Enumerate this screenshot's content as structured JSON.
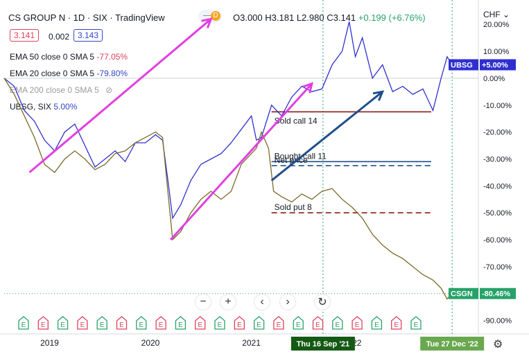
{
  "header": {
    "title": "CS GROUP N · 1D · SIX · TradingView",
    "ohlc_o": "O3.000",
    "ohlc_h": "H3.181",
    "ohlc_l": "L2.980",
    "ohlc_c": "C3.141",
    "change": "+0.199 (+6.76%)",
    "currency": "CHF",
    "bid": "3.141",
    "spread": "0.002",
    "ask": "3.143"
  },
  "indicators": [
    {
      "label": "EMA 50 close 0 SMA 5",
      "value": "-77.05%",
      "color": "#e0405a"
    },
    {
      "label": "EMA 20 close 0 SMA 5",
      "value": "-79.80%",
      "color": "#3347c9"
    },
    {
      "label": "EMA 200 close 0 SMA 5",
      "value": ""
    },
    {
      "label": "UBSG, SIX",
      "value": "5.00%",
      "color": "#3347c9"
    }
  ],
  "chart_data": {
    "type": "line",
    "y_axis_unit": "%",
    "ylim": [
      -95,
      27
    ],
    "y_ticks": [
      "20.00%",
      "10.00%",
      "0.00%",
      "-10.00%",
      "-20.00%",
      "-30.00%",
      "-40.00%",
      "-50.00%",
      "-60.00%",
      "-70.00%",
      "-80.00%",
      "-90.00%"
    ],
    "y_tick_values": [
      20,
      10,
      0,
      -10,
      -20,
      -30,
      -40,
      -50,
      -60,
      -70,
      -80,
      -90
    ],
    "x_ticks": [
      "2019",
      "2020",
      "2021",
      "2022"
    ],
    "x_tick_values": [
      2019.0,
      2020.0,
      2021.0,
      2022.0
    ],
    "xlim": [
      2018.55,
      2023.25
    ],
    "date_markers": [
      {
        "label": "Thu 16 Sep '21",
        "x": 2021.71
      },
      {
        "label": "Tue 27 Dec '22",
        "x": 2022.99
      }
    ],
    "series": [
      {
        "name": "UBSG",
        "color": "#2f2fd0",
        "last_label": "+5.00%",
        "points": [
          [
            2018.55,
            0
          ],
          [
            2018.65,
            -3
          ],
          [
            2018.75,
            -12
          ],
          [
            2018.85,
            -16
          ],
          [
            2018.95,
            -23
          ],
          [
            2019.05,
            -27
          ],
          [
            2019.15,
            -20
          ],
          [
            2019.25,
            -17
          ],
          [
            2019.35,
            -25
          ],
          [
            2019.45,
            -33
          ],
          [
            2019.55,
            -30
          ],
          [
            2019.65,
            -27
          ],
          [
            2019.75,
            -31
          ],
          [
            2019.85,
            -24
          ],
          [
            2019.95,
            -24
          ],
          [
            2020.05,
            -21
          ],
          [
            2020.12,
            -23
          ],
          [
            2020.18,
            -40
          ],
          [
            2020.22,
            -52
          ],
          [
            2020.3,
            -47
          ],
          [
            2020.4,
            -38
          ],
          [
            2020.5,
            -32
          ],
          [
            2020.6,
            -30
          ],
          [
            2020.7,
            -28
          ],
          [
            2020.8,
            -24
          ],
          [
            2020.9,
            -19
          ],
          [
            2021.0,
            -14
          ],
          [
            2021.05,
            -23
          ],
          [
            2021.1,
            -22
          ],
          [
            2021.2,
            -10
          ],
          [
            2021.3,
            -14
          ],
          [
            2021.4,
            -7
          ],
          [
            2021.5,
            -3
          ],
          [
            2021.6,
            -5
          ],
          [
            2021.7,
            -4
          ],
          [
            2021.8,
            5
          ],
          [
            2021.9,
            10
          ],
          [
            2021.97,
            21
          ],
          [
            2022.03,
            8
          ],
          [
            2022.1,
            15
          ],
          [
            2022.2,
            0
          ],
          [
            2022.3,
            5
          ],
          [
            2022.4,
            -5
          ],
          [
            2022.5,
            -3
          ],
          [
            2022.6,
            -6
          ],
          [
            2022.7,
            -4
          ],
          [
            2022.8,
            -12
          ],
          [
            2022.88,
            0
          ],
          [
            2022.94,
            8
          ],
          [
            2022.99,
            5
          ]
        ]
      },
      {
        "name": "CSGN",
        "color": "#7a6a2a",
        "last_label": "-80.46%",
        "points": [
          [
            2018.55,
            0
          ],
          [
            2018.65,
            -6
          ],
          [
            2018.75,
            -14
          ],
          [
            2018.85,
            -22
          ],
          [
            2018.95,
            -32
          ],
          [
            2019.05,
            -35
          ],
          [
            2019.15,
            -30
          ],
          [
            2019.25,
            -27
          ],
          [
            2019.35,
            -30
          ],
          [
            2019.45,
            -34
          ],
          [
            2019.55,
            -32
          ],
          [
            2019.65,
            -28
          ],
          [
            2019.75,
            -27
          ],
          [
            2019.85,
            -24
          ],
          [
            2019.95,
            -22
          ],
          [
            2020.05,
            -20
          ],
          [
            2020.12,
            -22
          ],
          [
            2020.18,
            -45
          ],
          [
            2020.22,
            -60
          ],
          [
            2020.3,
            -57
          ],
          [
            2020.4,
            -50
          ],
          [
            2020.5,
            -45
          ],
          [
            2020.6,
            -42
          ],
          [
            2020.7,
            -45
          ],
          [
            2020.8,
            -42
          ],
          [
            2020.9,
            -32
          ],
          [
            2021.0,
            -28
          ],
          [
            2021.05,
            -26
          ],
          [
            2021.1,
            -20
          ],
          [
            2021.17,
            -26
          ],
          [
            2021.22,
            -42
          ],
          [
            2021.3,
            -44
          ],
          [
            2021.4,
            -46
          ],
          [
            2021.5,
            -43
          ],
          [
            2021.6,
            -45
          ],
          [
            2021.7,
            -42
          ],
          [
            2021.8,
            -41
          ],
          [
            2021.9,
            -45
          ],
          [
            2022.0,
            -48
          ],
          [
            2022.1,
            -52
          ],
          [
            2022.2,
            -58
          ],
          [
            2022.3,
            -62
          ],
          [
            2022.4,
            -65
          ],
          [
            2022.5,
            -67
          ],
          [
            2022.6,
            -70
          ],
          [
            2022.7,
            -73
          ],
          [
            2022.8,
            -75
          ],
          [
            2022.88,
            -78
          ],
          [
            2022.94,
            -82
          ],
          [
            2022.99,
            -80
          ]
        ]
      }
    ],
    "horizontal_lines": [
      {
        "label": "Sold call 14",
        "y": -12.5,
        "x_from": 2021.2,
        "color": "#8b1a1a",
        "dashed": false
      },
      {
        "label": "Bought call 11",
        "y": -31,
        "x_from": 2021.2,
        "color": "#1f4e8c",
        "dashed": false
      },
      {
        "label": "Net price",
        "y": -32.5,
        "x_from": 2021.2,
        "color": "#1f4e8c",
        "dashed": true
      },
      {
        "label": "Sold put 8",
        "y": -50,
        "x_from": 2021.2,
        "color": "#8b1a1a",
        "dashed": true
      }
    ],
    "arrows": [
      {
        "color": "#e040e0",
        "from": [
          2018.8,
          -35
        ],
        "to": [
          2020.6,
          22
        ]
      },
      {
        "color": "#e040e0",
        "from": [
          2020.2,
          -60
        ],
        "to": [
          2021.6,
          -2
        ]
      },
      {
        "color": "#1f4e8c",
        "from": [
          2021.2,
          -38
        ],
        "to": [
          2022.3,
          -5
        ]
      }
    ],
    "events": [
      "E",
      "E",
      "E",
      "E",
      "E",
      "E",
      "E",
      "E",
      "E",
      "E",
      "E",
      "E",
      "E",
      "E",
      "E",
      "E",
      "E",
      "E",
      "E",
      "E",
      "E"
    ]
  },
  "colors": {
    "ubsg_tag": "#2f2fd0",
    "csgn_tag": "#26a269",
    "date_tag_left": "#145a14",
    "date_tag_right": "#6aa84f"
  }
}
